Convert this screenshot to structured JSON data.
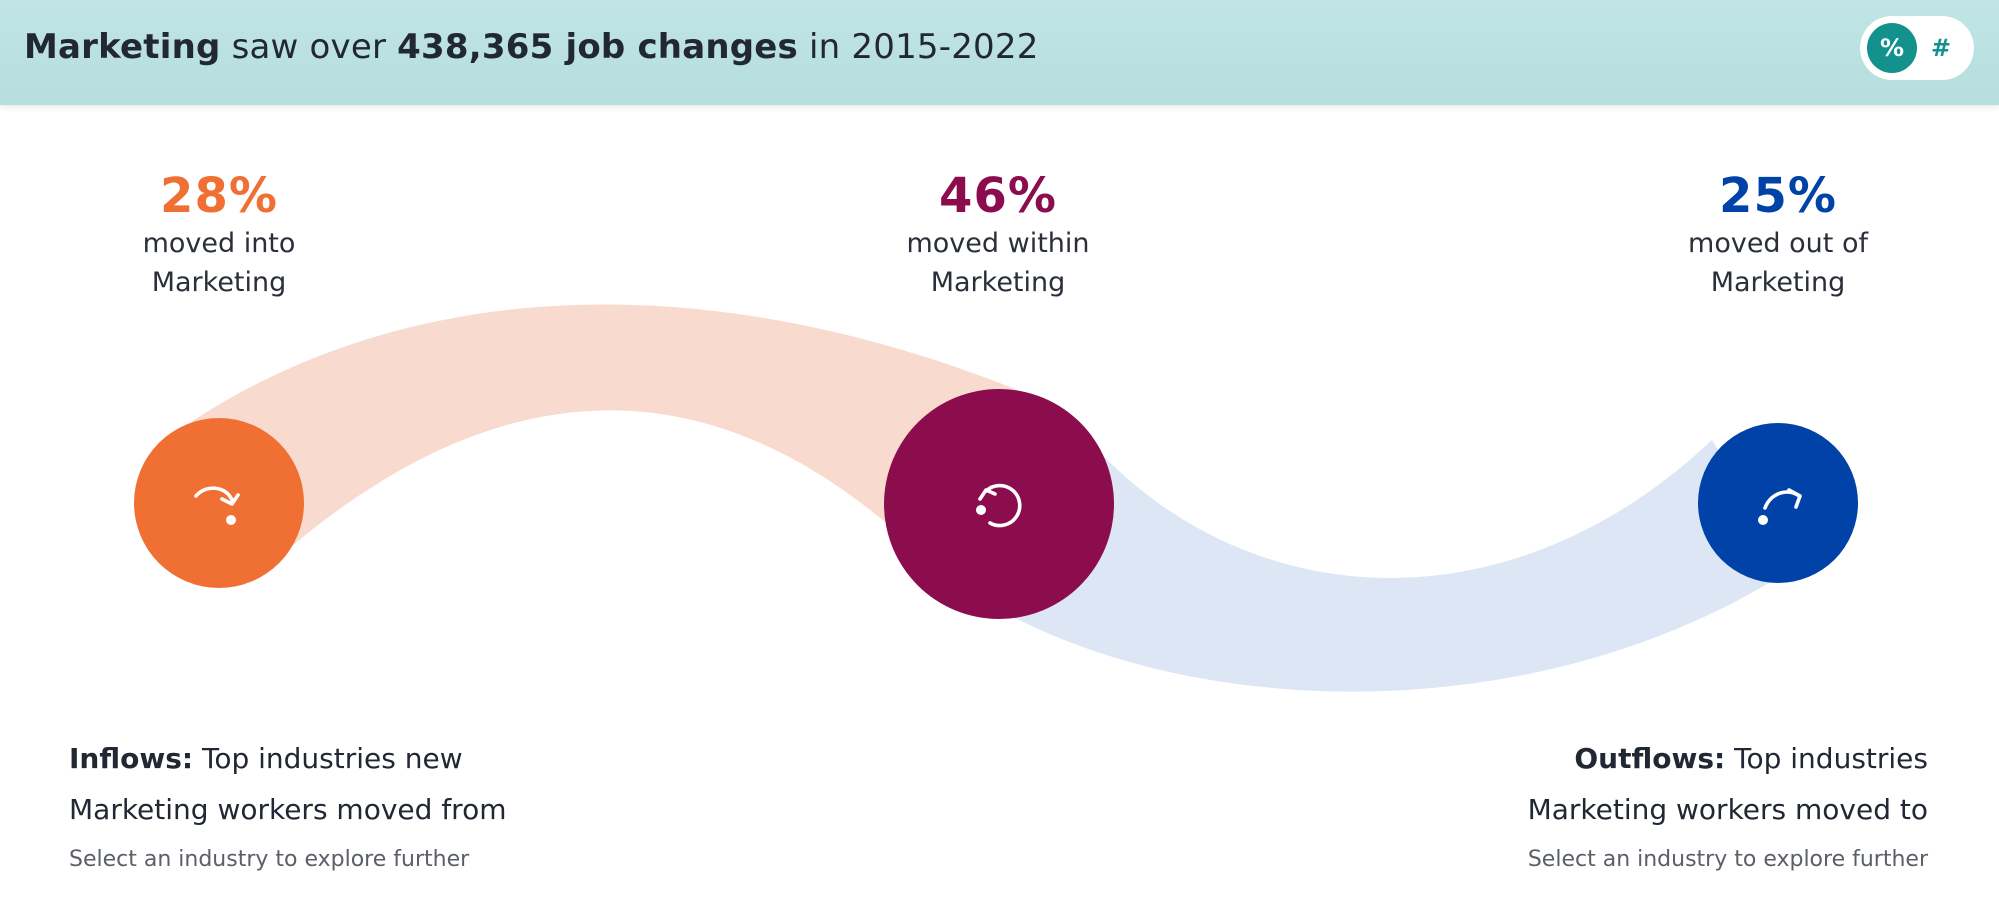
{
  "header": {
    "headline_strong_1": "Marketing",
    "headline_text_1": " saw over ",
    "headline_strong_2": "438,365 job changes",
    "headline_text_2": " in 2015-2022",
    "toggle": {
      "percent_label": "%",
      "count_label": "#",
      "active": "percent"
    }
  },
  "colors": {
    "inflow": "#f07033",
    "within": "#8c0d4d",
    "outflow": "#0142a8",
    "inflow_band": "#f8dace",
    "outflow_band": "#dde6f4",
    "accent": "#13918c"
  },
  "flows": {
    "inflow": {
      "value": "28%",
      "label_line1": "moved into",
      "label_line2": "Marketing",
      "icon": "arrow-into-icon"
    },
    "within": {
      "value": "46%",
      "label_line1": "moved within",
      "label_line2": "Marketing",
      "icon": "loop-arrow-icon"
    },
    "outflow": {
      "value": "25%",
      "label_line1": "moved out of",
      "label_line2": "Marketing",
      "icon": "arrow-out-icon"
    }
  },
  "panels": {
    "inflows": {
      "title_strong": "Inflows:",
      "title_line1": " Top industries new",
      "title_line2": "Marketing workers moved from",
      "hint": "Select an industry to explore further"
    },
    "outflows": {
      "title_strong": "Outflows:",
      "title_line1": " Top industries",
      "title_line2": "Marketing workers moved to",
      "hint": "Select an industry to explore further"
    }
  }
}
